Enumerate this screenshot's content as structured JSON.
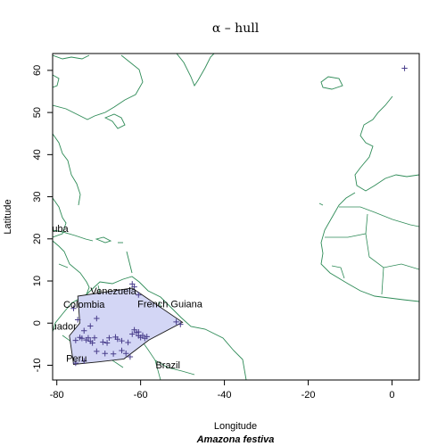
{
  "title": "α – hull",
  "species": "Amazona festiva",
  "axes": {
    "xlabel": "Longitude",
    "ylabel": "Latitude",
    "xlim": [
      -81,
      6.5
    ],
    "ylim": [
      -13.5,
      64
    ],
    "xticks": [
      -80,
      -60,
      -40,
      -20,
      0
    ],
    "yticks": [
      -10,
      0,
      10,
      20,
      30,
      40,
      50,
      60
    ]
  },
  "labels": [
    {
      "text": "Venezuela",
      "lon": -66.5,
      "lat": 6.8
    },
    {
      "text": "Colombia",
      "lon": -73.5,
      "lat": 3.7
    },
    {
      "text": "French Guiana",
      "lon": -53,
      "lat": 3.8
    },
    {
      "text": "uador",
      "lon": -78.3,
      "lat": -1.5
    },
    {
      "text": "Peru",
      "lon": -75.3,
      "lat": -9.2
    },
    {
      "text": "Brazil",
      "lon": -53.5,
      "lat": -10.7
    },
    {
      "text": "uba",
      "lon": -79.2,
      "lat": 21.6
    }
  ],
  "colors": {
    "coast": "#2e8b57",
    "hull_fill": "#d3d6f5",
    "hull_edge": "#1a1a1a",
    "points": "#483d8b"
  },
  "chart_data": {
    "type": "scatter",
    "hull": [
      [
        -75,
        6.4
      ],
      [
        -62,
        8.3
      ],
      [
        -58,
        5.6
      ],
      [
        -50,
        0.2
      ],
      [
        -58,
        -4
      ],
      [
        -64,
        -8.5
      ],
      [
        -70,
        -9.2
      ],
      [
        -76,
        -9.8
      ],
      [
        -77,
        -3
      ],
      [
        -74.5,
        0
      ],
      [
        -75,
        6.4
      ]
    ],
    "points": [
      [
        3,
        60.5
      ],
      [
        -62,
        9.3
      ],
      [
        -61.5,
        8.6
      ],
      [
        -60.5,
        6.7
      ],
      [
        -70.5,
        1.1
      ],
      [
        -74.5,
        -3.4
      ],
      [
        -75.5,
        -4.1
      ],
      [
        -74,
        -3.6
      ],
      [
        -73,
        -4
      ],
      [
        -72.5,
        -3.5
      ],
      [
        -72,
        -4.3
      ],
      [
        -71.5,
        -4.7
      ],
      [
        -71,
        -3.5
      ],
      [
        -69,
        -4.5
      ],
      [
        -68,
        -4.7
      ],
      [
        -67.5,
        -3.5
      ],
      [
        -66,
        -3.3
      ],
      [
        -65.5,
        -3.8
      ],
      [
        -64.5,
        -4.2
      ],
      [
        -63,
        -4.6
      ],
      [
        -62,
        -2.6
      ],
      [
        -61,
        -2.2
      ],
      [
        -60.5,
        -3
      ],
      [
        -60,
        -3.4
      ],
      [
        -59.5,
        -2.9
      ],
      [
        -59,
        -3.6
      ],
      [
        -58.5,
        -3.2
      ],
      [
        -60.5,
        -2.1
      ],
      [
        -61.5,
        -1.6
      ],
      [
        -63.5,
        -7.2
      ],
      [
        -64.5,
        -6.5
      ],
      [
        -62.5,
        -8
      ],
      [
        -66.5,
        -7.3
      ],
      [
        -68.5,
        -7.2
      ],
      [
        -70.5,
        -6.7
      ],
      [
        -73.5,
        -9
      ],
      [
        -75.5,
        -9.5
      ],
      [
        -51.5,
        0.3
      ],
      [
        -50.5,
        -0.3
      ],
      [
        -72,
        -0.7
      ],
      [
        -73.5,
        -1.8
      ],
      [
        -75,
        0.8
      ],
      [
        -76,
        3.5
      ]
    ]
  }
}
